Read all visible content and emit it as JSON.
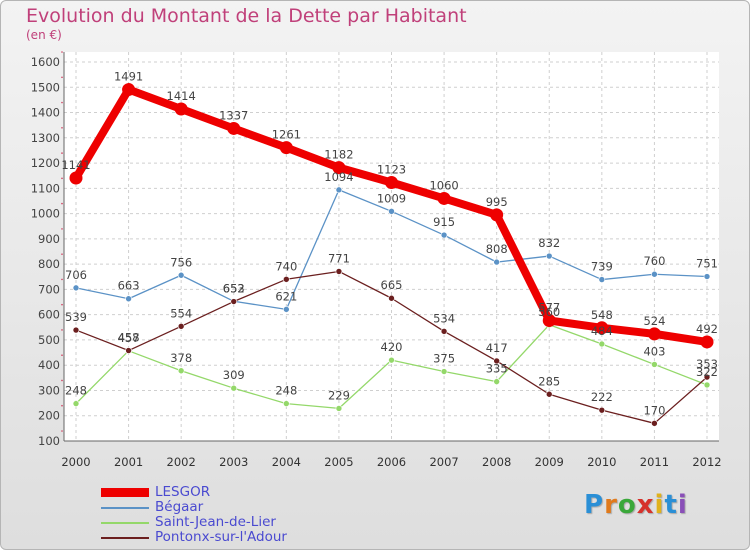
{
  "header": {
    "title": "Evolution du Montant de la Dette par Habitant",
    "subtitle": "(en €)"
  },
  "logo": {
    "text": "Proxiti",
    "letter_colors": [
      "#2a8fd6",
      "#e07a1c",
      "#3aa83a",
      "#d6312b",
      "#e0b21c",
      "#2a8fd6",
      "#8a4fb8"
    ]
  },
  "chart_data": {
    "type": "line",
    "x": [
      "2000",
      "2001",
      "2002",
      "2003",
      "2004",
      "2005",
      "2006",
      "2007",
      "2008",
      "2009",
      "2010",
      "2011",
      "2012"
    ],
    "ylim": [
      100,
      1600
    ],
    "yticks": [
      100,
      200,
      300,
      400,
      500,
      600,
      700,
      800,
      900,
      1000,
      1100,
      1200,
      1300,
      1400,
      1500,
      1600
    ],
    "grid": true,
    "legend_position": "bottom-left",
    "series": [
      {
        "name": "LESGOR",
        "color": "#ee0000",
        "emphasis": true,
        "values": [
          1141,
          1491,
          1414,
          1337,
          1261,
          1182,
          1123,
          1060,
          995,
          577,
          548,
          524,
          492
        ]
      },
      {
        "name": "Bégaar",
        "color": "#5b92c6",
        "values": [
          706,
          663,
          756,
          653,
          621,
          1094,
          1009,
          915,
          808,
          832,
          739,
          760,
          751
        ]
      },
      {
        "name": "Saint-Jean-de-Lier",
        "color": "#94d86a",
        "values": [
          248,
          457,
          378,
          309,
          248,
          229,
          420,
          375,
          335,
          560,
          484,
          403,
          322
        ]
      },
      {
        "name": "Pontonx-sur-l'Adour",
        "color": "#6b1f1f",
        "values": [
          539,
          458,
          554,
          652,
          740,
          771,
          665,
          534,
          417,
          285,
          222,
          170,
          353
        ]
      }
    ]
  }
}
